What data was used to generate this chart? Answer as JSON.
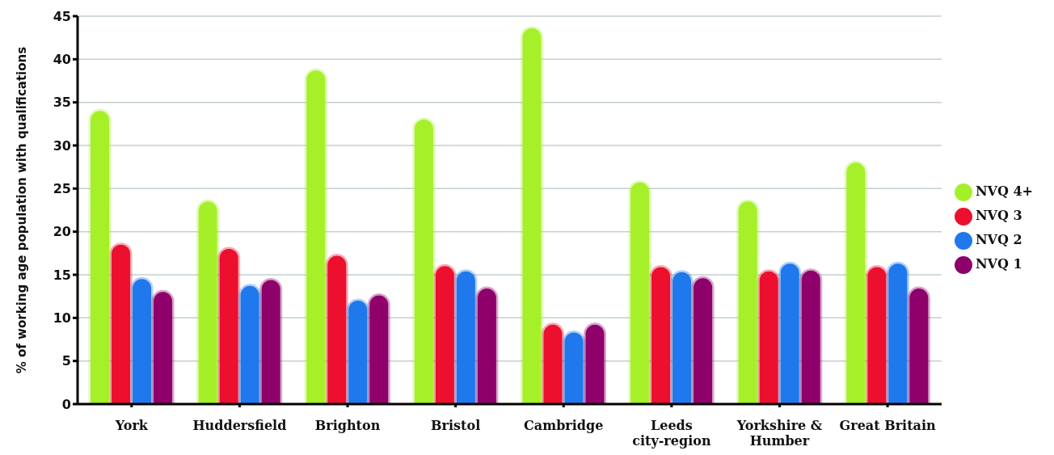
{
  "chart_data": {
    "type": "bar",
    "ylabel": "% of working age population with qualifications",
    "categories": [
      "York",
      "Huddersfield",
      "Brighton",
      "Bristol",
      "Cambridge",
      "Leeds city-region",
      "Yorkshire & Humber",
      "Great Britain"
    ],
    "series": [
      {
        "name": "NVQ 4+",
        "color": "#a6f02a",
        "values": [
          34,
          23.5,
          38.7,
          33,
          43.6,
          25.7,
          23.5,
          28
        ]
      },
      {
        "name": "NVQ 3",
        "color": "#ec102e",
        "values": [
          18.5,
          18,
          17.2,
          16,
          9.2,
          15.9,
          15.4,
          15.9
        ]
      },
      {
        "name": "NVQ 2",
        "color": "#2079ec",
        "values": [
          14.5,
          13.7,
          12,
          15.4,
          8.3,
          15.3,
          16.3,
          16.3
        ]
      },
      {
        "name": "NVQ 1",
        "color": "#8e016b",
        "values": [
          13,
          14.4,
          12.6,
          13.4,
          9.2,
          14.6,
          15.5,
          13.4
        ]
      }
    ],
    "ylim": [
      0,
      45
    ],
    "yticks": [
      0,
      5,
      10,
      15,
      20,
      25,
      30,
      35,
      40,
      45
    ],
    "grid": "y",
    "legend": "right"
  }
}
